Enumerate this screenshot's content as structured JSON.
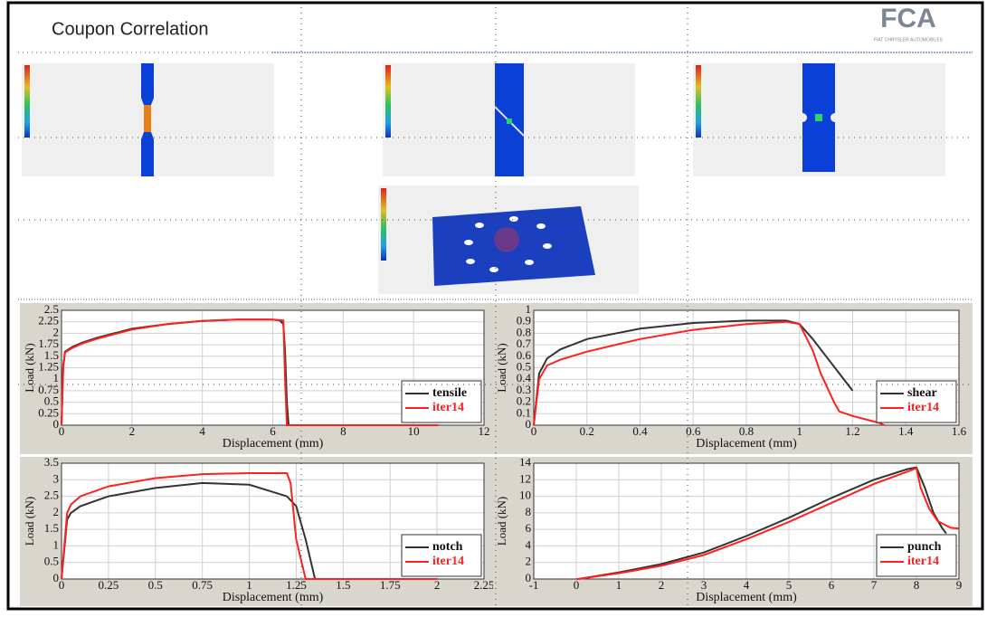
{
  "header": {
    "title": "Coupon Correlation",
    "logo": "FCA",
    "logo_subtitle": "FIAT CHRYSLER AUTOMOBILES"
  },
  "chart_data": [
    {
      "type": "line",
      "x_label": "Displacement (mm)",
      "y_label": "Load (kN)",
      "xlim": [
        0,
        12
      ],
      "xticks": [
        0,
        2,
        4,
        6,
        8,
        10,
        12
      ],
      "ylim": [
        0,
        2.5
      ],
      "yticks": [
        0,
        0.25,
        0.5,
        0.75,
        1,
        1.25,
        1.5,
        1.75,
        2,
        2.25,
        2.5
      ],
      "grid": true,
      "legend": "bottom-right",
      "series": [
        {
          "name": "tensile",
          "color": "#333333",
          "x": [
            0,
            0.05,
            0.1,
            0.3,
            0.6,
            1,
            2,
            3,
            4,
            5,
            6,
            6.2,
            6.3,
            6.35,
            6.4,
            6.45,
            10.7
          ],
          "values": [
            0,
            1.3,
            1.6,
            1.7,
            1.8,
            1.9,
            2.1,
            2.2,
            2.27,
            2.3,
            2.3,
            2.28,
            2.2,
            1.6,
            0.5,
            0,
            0
          ]
        },
        {
          "name": "iter14",
          "color": "#ff2020",
          "x": [
            0,
            0.05,
            0.1,
            0.3,
            0.6,
            1,
            2,
            3,
            4,
            5,
            6,
            6.3,
            6.35,
            6.4,
            10.7
          ],
          "values": [
            0,
            1.25,
            1.58,
            1.68,
            1.78,
            1.88,
            2.08,
            2.2,
            2.27,
            2.3,
            2.3,
            2.28,
            1,
            0,
            0
          ]
        }
      ]
    },
    {
      "type": "line",
      "x_label": "Displacement (mm)",
      "y_label": "Load (kN)",
      "xlim": [
        0,
        1.6
      ],
      "xticks": [
        0,
        0.2,
        0.4,
        0.6,
        0.8,
        1,
        1.2,
        1.4,
        1.6
      ],
      "ylim": [
        0,
        1
      ],
      "yticks": [
        0,
        0.1,
        0.2,
        0.3,
        0.4,
        0.5,
        0.6,
        0.7,
        0.8,
        0.9,
        1
      ],
      "grid": true,
      "legend": "bottom-right",
      "series": [
        {
          "name": "shear",
          "color": "#333333",
          "x": [
            0,
            0.02,
            0.05,
            0.1,
            0.2,
            0.4,
            0.6,
            0.8,
            0.95,
            1,
            1.05,
            1.1,
            1.15,
            1.2
          ],
          "values": [
            0,
            0.45,
            0.58,
            0.66,
            0.75,
            0.84,
            0.89,
            0.91,
            0.91,
            0.88,
            0.75,
            0.6,
            0.45,
            0.3
          ]
        },
        {
          "name": "iter14",
          "color": "#ff2020",
          "x": [
            0,
            0.02,
            0.05,
            0.1,
            0.2,
            0.4,
            0.6,
            0.8,
            0.95,
            1,
            1.05,
            1.08,
            1.1,
            1.13,
            1.15,
            1.2,
            1.25,
            1.3,
            1.32
          ],
          "values": [
            0,
            0.4,
            0.52,
            0.57,
            0.64,
            0.75,
            0.83,
            0.88,
            0.9,
            0.88,
            0.65,
            0.45,
            0.35,
            0.2,
            0.12,
            0.08,
            0.05,
            0.02,
            0
          ]
        }
      ]
    },
    {
      "type": "line",
      "x_label": "Displacement (mm)",
      "y_label": "Load (kN)",
      "xlim": [
        0,
        2.25
      ],
      "xticks": [
        0,
        0.25,
        0.5,
        0.75,
        1,
        1.25,
        1.5,
        1.75,
        2,
        2.25
      ],
      "ylim": [
        0,
        3.5
      ],
      "yticks": [
        0,
        0.5,
        1,
        1.5,
        2,
        2.5,
        3,
        3.5
      ],
      "grid": true,
      "legend": "bottom-right",
      "series": [
        {
          "name": "notch",
          "color": "#333333",
          "x": [
            0,
            0.03,
            0.05,
            0.1,
            0.25,
            0.5,
            0.75,
            1,
            1.2,
            1.25,
            1.3,
            1.35,
            2
          ],
          "values": [
            0,
            1.8,
            2,
            2.2,
            2.5,
            2.75,
            2.9,
            2.85,
            2.5,
            2.2,
            1.2,
            0,
            0
          ]
        },
        {
          "name": "iter14",
          "color": "#ff2020",
          "x": [
            0,
            0.03,
            0.05,
            0.1,
            0.25,
            0.5,
            0.75,
            1,
            1.2,
            1.22,
            1.25,
            1.3,
            2
          ],
          "values": [
            0,
            2,
            2.25,
            2.5,
            2.8,
            3.05,
            3.17,
            3.2,
            3.2,
            2.9,
            1.2,
            0,
            0
          ]
        }
      ]
    },
    {
      "type": "line",
      "x_label": "Displacement (mm)",
      "y_label": "Load (kN)",
      "xlim": [
        -1,
        9
      ],
      "xticks": [
        -1,
        0,
        1,
        2,
        3,
        4,
        5,
        6,
        7,
        8,
        9
      ],
      "ylim": [
        0,
        14
      ],
      "yticks": [
        0,
        2,
        4,
        6,
        8,
        10,
        12,
        14
      ],
      "grid": true,
      "legend": "bottom-right",
      "series": [
        {
          "name": "punch",
          "color": "#333333",
          "x": [
            0,
            0.05,
            1,
            2,
            3,
            4,
            5,
            6,
            7,
            7.8,
            8,
            8.2,
            8.4,
            8.6,
            8.7
          ],
          "values": [
            0,
            0,
            0.8,
            1.8,
            3.2,
            5.2,
            7.4,
            9.8,
            12,
            13.3,
            13.5,
            11,
            8,
            6.2,
            5.5
          ]
        },
        {
          "name": "iter14",
          "color": "#ff2020",
          "x": [
            0,
            0.05,
            1,
            2,
            3,
            4,
            5,
            6,
            7,
            7.8,
            8,
            8.1,
            8.3,
            8.5,
            8.8,
            9
          ],
          "values": [
            0,
            0,
            0.7,
            1.6,
            2.9,
            4.8,
            6.9,
            9.2,
            11.5,
            13,
            13.4,
            11,
            8.5,
            7,
            6.2,
            6.1
          ]
        }
      ]
    }
  ]
}
